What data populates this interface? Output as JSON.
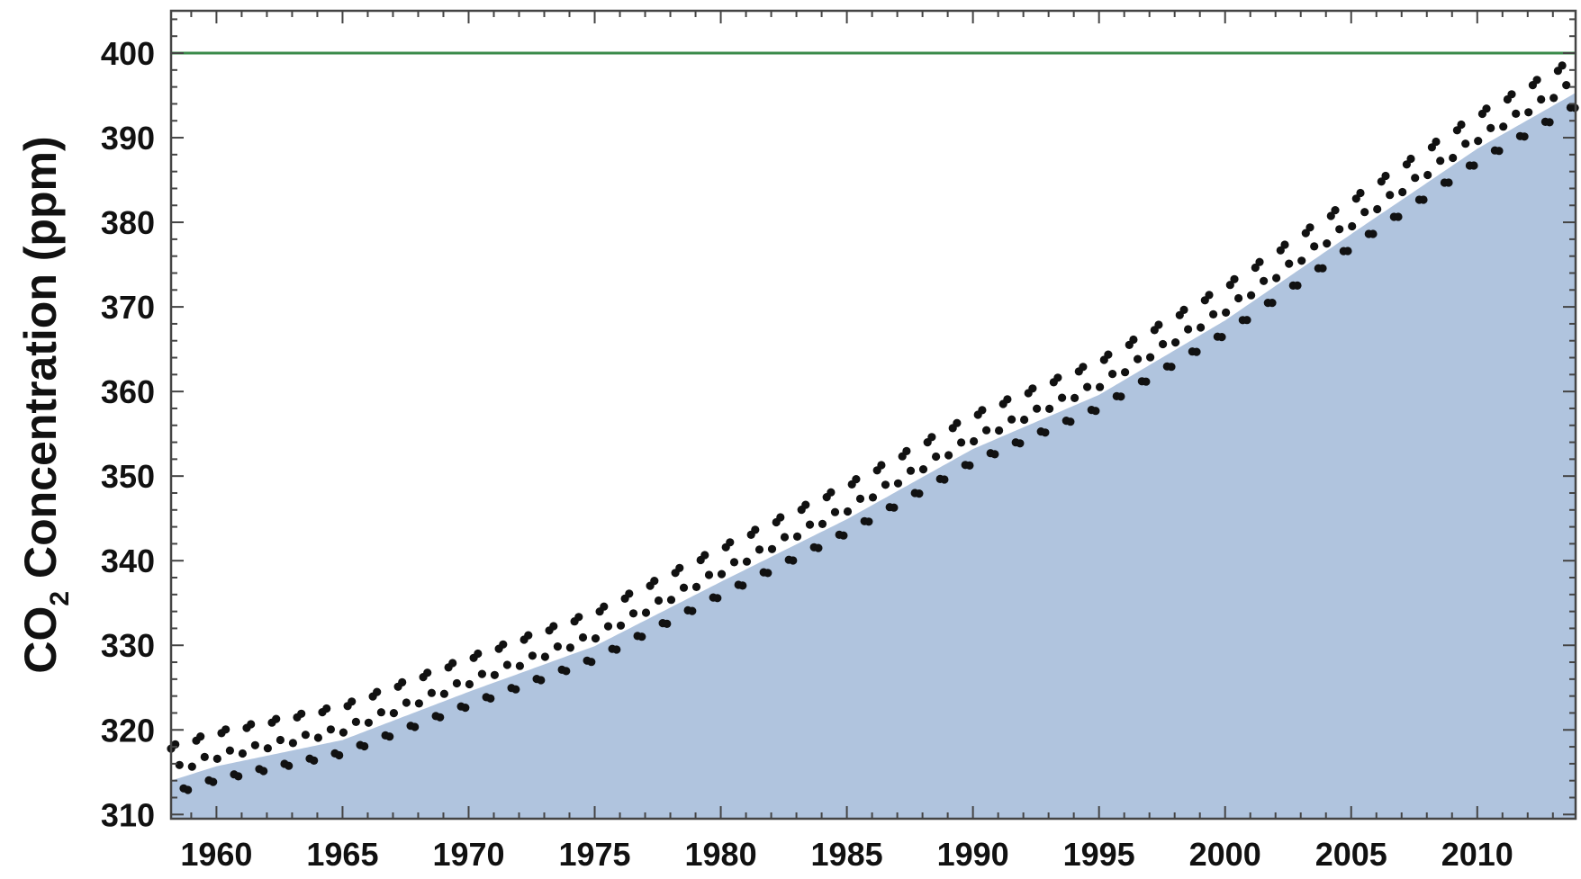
{
  "chart_data": {
    "type": "scatter",
    "title": "",
    "xlabel": "",
    "ylabel": "CO2 Concentration (ppm)",
    "ylabel_parts": {
      "main": "CO",
      "sub": "2",
      "rest": " Concentration (ppm)"
    },
    "xlim": [
      1958.2,
      2013.9
    ],
    "ylim": [
      309.5,
      405
    ],
    "xticks": [
      1960,
      1965,
      1970,
      1975,
      1980,
      1985,
      1990,
      1995,
      2000,
      2005,
      2010
    ],
    "xtick_labels": [
      "1960",
      "1965",
      "1970",
      "1975",
      "1980",
      "1985",
      "1990",
      "1995",
      "2000",
      "2005",
      "2010"
    ],
    "yticks": [
      310,
      320,
      330,
      340,
      350,
      360,
      370,
      380,
      390,
      400
    ],
    "ytick_labels": [
      "310",
      "320",
      "330",
      "340",
      "350",
      "360",
      "370",
      "380",
      "390",
      "400"
    ],
    "reference_line": {
      "y": 400
    },
    "trend_x": [
      1958.2,
      1960,
      1965,
      1970,
      1975,
      1980,
      1985,
      1990,
      1995,
      2000,
      2005,
      2010,
      2013.9
    ],
    "trend_y": [
      315.2,
      316.9,
      320.0,
      325.7,
      331.1,
      338.7,
      346.1,
      354.4,
      360.8,
      369.6,
      379.8,
      389.9,
      396.5
    ],
    "seasonal_amplitude": 3.2,
    "samples_per_year": 6,
    "grid": false,
    "colors": {
      "fill": "#b0c4de",
      "points": "#111111",
      "reference_line": "#3a8a4a",
      "frame": "#444444",
      "background": "#ffffff"
    }
  }
}
